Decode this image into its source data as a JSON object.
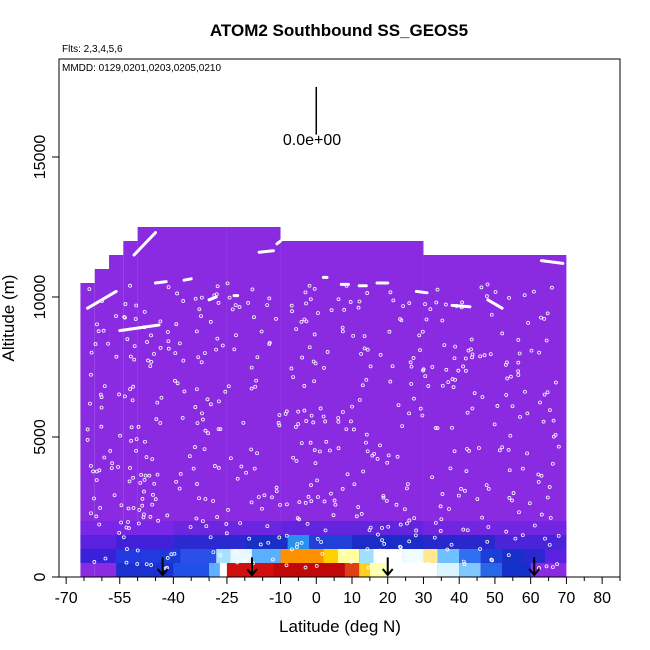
{
  "chart_data": {
    "type": "heatmap",
    "title": "ATOM2 Southbound SS_GEOS5",
    "annotations": {
      "flights": "Flts: 2,3,4,5,6",
      "dates": "MMDD: 0129,0201,0203,0205,0210",
      "scale_label": "0.0e+00"
    },
    "xlabel": "Latitude (deg N)",
    "ylabel": "Altitude (m)",
    "xlim": [
      -72,
      85
    ],
    "ylim": [
      0,
      18500
    ],
    "x_ticks": [
      -70,
      -55,
      -40,
      -25,
      -10,
      0,
      10,
      20,
      30,
      40,
      50,
      60,
      70,
      80
    ],
    "x_tick_labels": [
      "-70",
      "-55",
      "-40",
      "-25",
      "-10",
      "0",
      "10",
      "20",
      "30",
      "40",
      "50",
      "60",
      "70",
      "80"
    ],
    "x_minor_ticks": [
      -65,
      -60,
      -50,
      -45,
      -35,
      -30,
      -20,
      -15,
      -5,
      5,
      15,
      25,
      35,
      45,
      55,
      65,
      75,
      85
    ],
    "y_ticks": [
      0,
      5000,
      10000,
      15000
    ],
    "y_tick_labels": [
      "0",
      "5000",
      "10000",
      "15000"
    ],
    "background_value_color": "#8a2be2",
    "colors": {
      "background_field": "#8a2be2",
      "field_edge": "#7a28ea",
      "track_points": "#ffffff",
      "arrows": "#000000",
      "frame": "#000000"
    },
    "field_envelope": [
      {
        "lat_from": -66,
        "lat_to": -62,
        "alt_top": 10500
      },
      {
        "lat_from": -62,
        "lat_to": -58,
        "alt_top": 11000
      },
      {
        "lat_from": -58,
        "lat_to": -54,
        "alt_top": 11500
      },
      {
        "lat_from": -54,
        "lat_to": -50,
        "alt_top": 12000
      },
      {
        "lat_from": -50,
        "lat_to": -25,
        "alt_top": 12500
      },
      {
        "lat_from": -25,
        "lat_to": -10,
        "alt_top": 12500
      },
      {
        "lat_from": -10,
        "lat_to": 30,
        "alt_top": 12000
      },
      {
        "lat_from": 30,
        "lat_to": 70,
        "alt_top": 11500
      }
    ],
    "boundary_layer_cells": [
      {
        "lat_from": -56,
        "lat_to": -40,
        "alt_from": 0,
        "alt_to": 500,
        "color": "#1a30d0"
      },
      {
        "lat_from": -40,
        "lat_to": -30,
        "alt_from": 0,
        "alt_to": 500,
        "color": "#2050e8"
      },
      {
        "lat_from": -30,
        "lat_to": -27,
        "alt_from": 0,
        "alt_to": 500,
        "color": "#60b0ff"
      },
      {
        "lat_from": -27,
        "lat_to": -25,
        "alt_from": 0,
        "alt_to": 500,
        "color": "#ffffff"
      },
      {
        "lat_from": -25,
        "lat_to": -12,
        "alt_from": 0,
        "alt_to": 500,
        "color": "#d01010"
      },
      {
        "lat_from": -12,
        "lat_to": 8,
        "alt_from": 0,
        "alt_to": 500,
        "color": "#c00808"
      },
      {
        "lat_from": 8,
        "lat_to": 12,
        "alt_from": 0,
        "alt_to": 500,
        "color": "#e04010"
      },
      {
        "lat_from": 12,
        "lat_to": 15,
        "alt_from": 0,
        "alt_to": 500,
        "color": "#ffd020"
      },
      {
        "lat_from": 15,
        "lat_to": 20,
        "alt_from": 0,
        "alt_to": 500,
        "color": "#ffffb0"
      },
      {
        "lat_from": 20,
        "lat_to": 34,
        "alt_from": 0,
        "alt_to": 500,
        "color": "#ffffff"
      },
      {
        "lat_from": 34,
        "lat_to": 40,
        "alt_from": 0,
        "alt_to": 500,
        "color": "#d8f4ff"
      },
      {
        "lat_from": 40,
        "lat_to": 46,
        "alt_from": 0,
        "alt_to": 500,
        "color": "#80c8ff"
      },
      {
        "lat_from": 46,
        "lat_to": 52,
        "alt_from": 0,
        "alt_to": 500,
        "color": "#2868e8"
      },
      {
        "lat_from": 52,
        "lat_to": 60,
        "alt_from": 0,
        "alt_to": 500,
        "color": "#1530c8"
      },
      {
        "lat_from": -66,
        "lat_to": -56,
        "alt_from": 500,
        "alt_to": 1000,
        "color": "#3a20d8"
      },
      {
        "lat_from": -56,
        "lat_to": -44,
        "alt_from": 500,
        "alt_to": 1000,
        "color": "#2238e0"
      },
      {
        "lat_from": -44,
        "lat_to": -38,
        "alt_from": 500,
        "alt_to": 1000,
        "color": "#1a3ad8"
      },
      {
        "lat_from": -38,
        "lat_to": -28,
        "alt_from": 500,
        "alt_to": 1000,
        "color": "#2a50e8"
      },
      {
        "lat_from": -28,
        "lat_to": -24,
        "alt_from": 500,
        "alt_to": 1000,
        "color": "#a8e0ff"
      },
      {
        "lat_from": -24,
        "lat_to": -18,
        "alt_from": 500,
        "alt_to": 1000,
        "color": "#e8f8ff"
      },
      {
        "lat_from": -18,
        "lat_to": -10,
        "alt_from": 500,
        "alt_to": 1000,
        "color": "#5ab0ff"
      },
      {
        "lat_from": -10,
        "lat_to": 2,
        "alt_from": 500,
        "alt_to": 1000,
        "color": "#ff9000"
      },
      {
        "lat_from": 2,
        "lat_to": 6,
        "alt_from": 500,
        "alt_to": 1000,
        "color": "#ffd000"
      },
      {
        "lat_from": 6,
        "lat_to": 12,
        "alt_from": 500,
        "alt_to": 1000,
        "color": "#ffffa0"
      },
      {
        "lat_from": 12,
        "lat_to": 16,
        "alt_from": 500,
        "alt_to": 1000,
        "color": "#a0e0ff"
      },
      {
        "lat_from": 16,
        "lat_to": 24,
        "alt_from": 500,
        "alt_to": 1000,
        "color": "#ffffff"
      },
      {
        "lat_from": 24,
        "lat_to": 30,
        "alt_from": 500,
        "alt_to": 1000,
        "color": "#f0fcff"
      },
      {
        "lat_from": 30,
        "lat_to": 34,
        "alt_from": 500,
        "alt_to": 1000,
        "color": "#ffe890"
      },
      {
        "lat_from": 34,
        "lat_to": 40,
        "alt_from": 500,
        "alt_to": 1000,
        "color": "#70c0ff"
      },
      {
        "lat_from": 40,
        "lat_to": 46,
        "alt_from": 500,
        "alt_to": 1000,
        "color": "#3070f0"
      },
      {
        "lat_from": 46,
        "lat_to": 52,
        "alt_from": 500,
        "alt_to": 1000,
        "color": "#1a3ed8"
      },
      {
        "lat_from": 52,
        "lat_to": 58,
        "alt_from": 500,
        "alt_to": 1000,
        "color": "#1830c8"
      },
      {
        "lat_from": 58,
        "lat_to": 64,
        "alt_from": 500,
        "alt_to": 1000,
        "color": "#2a28d0"
      },
      {
        "lat_from": 64,
        "lat_to": 70,
        "alt_from": 500,
        "alt_to": 1000,
        "color": "#5a22e0"
      },
      {
        "lat_from": -66,
        "lat_to": -56,
        "alt_from": 1000,
        "alt_to": 1500,
        "color": "#5a22e0"
      },
      {
        "lat_from": -56,
        "lat_to": -40,
        "alt_from": 1000,
        "alt_to": 1500,
        "color": "#4020d8"
      },
      {
        "lat_from": -40,
        "lat_to": -20,
        "alt_from": 1000,
        "alt_to": 1500,
        "color": "#2a2ad0"
      },
      {
        "lat_from": -20,
        "lat_to": -8,
        "alt_from": 1000,
        "alt_to": 1500,
        "color": "#1830c8"
      },
      {
        "lat_from": -8,
        "lat_to": -2,
        "alt_from": 1000,
        "alt_to": 1500,
        "color": "#2a90f0"
      },
      {
        "lat_from": -2,
        "lat_to": 10,
        "alt_from": 1000,
        "alt_to": 1500,
        "color": "#2040d8"
      },
      {
        "lat_from": 10,
        "lat_to": 30,
        "alt_from": 1000,
        "alt_to": 1500,
        "color": "#1c2cc8"
      },
      {
        "lat_from": 30,
        "lat_to": 50,
        "alt_from": 1000,
        "alt_to": 1500,
        "color": "#2828cc"
      },
      {
        "lat_from": 50,
        "lat_to": 70,
        "alt_from": 1000,
        "alt_to": 1500,
        "color": "#4a24d8"
      },
      {
        "lat_from": -66,
        "lat_to": -40,
        "alt_from": 1500,
        "alt_to": 2000,
        "color": "#7a26e6"
      },
      {
        "lat_from": -40,
        "lat_to": -10,
        "alt_from": 1500,
        "alt_to": 2000,
        "color": "#6c26e0"
      },
      {
        "lat_from": -10,
        "lat_to": 30,
        "alt_from": 1500,
        "alt_to": 2000,
        "color": "#6224dc"
      },
      {
        "lat_from": 30,
        "lat_to": 70,
        "alt_from": 1500,
        "alt_to": 2000,
        "color": "#7226e2"
      }
    ],
    "track_segments": [
      [
        -64,
        9600,
        -56,
        10200
      ],
      [
        -55,
        8800,
        -44,
        9000
      ],
      [
        -51,
        11500,
        -45,
        12300
      ],
      [
        -45,
        10500,
        -42,
        10550
      ],
      [
        -37,
        10600,
        -35,
        10650
      ],
      [
        -30,
        9900,
        -28,
        10000
      ],
      [
        -23,
        10050,
        -22,
        10050
      ],
      [
        -16,
        11600,
        -12,
        11650
      ],
      [
        -11,
        11900,
        -10,
        12000
      ],
      [
        2,
        10700,
        3,
        10700
      ],
      [
        7,
        10450,
        9,
        10450
      ],
      [
        12,
        10400,
        14,
        10400
      ],
      [
        17,
        10500,
        20,
        10500
      ],
      [
        28,
        10200,
        31,
        10150
      ],
      [
        38,
        9700,
        43,
        9650
      ],
      [
        48,
        9900,
        52,
        9600
      ],
      [
        63,
        11300,
        69,
        11200
      ]
    ],
    "arrows_latitudes": [
      -43,
      -18,
      20,
      61
    ],
    "scale_bar": {
      "lat": 0,
      "alt_bottom": 15800,
      "alt_top": 17500
    }
  }
}
